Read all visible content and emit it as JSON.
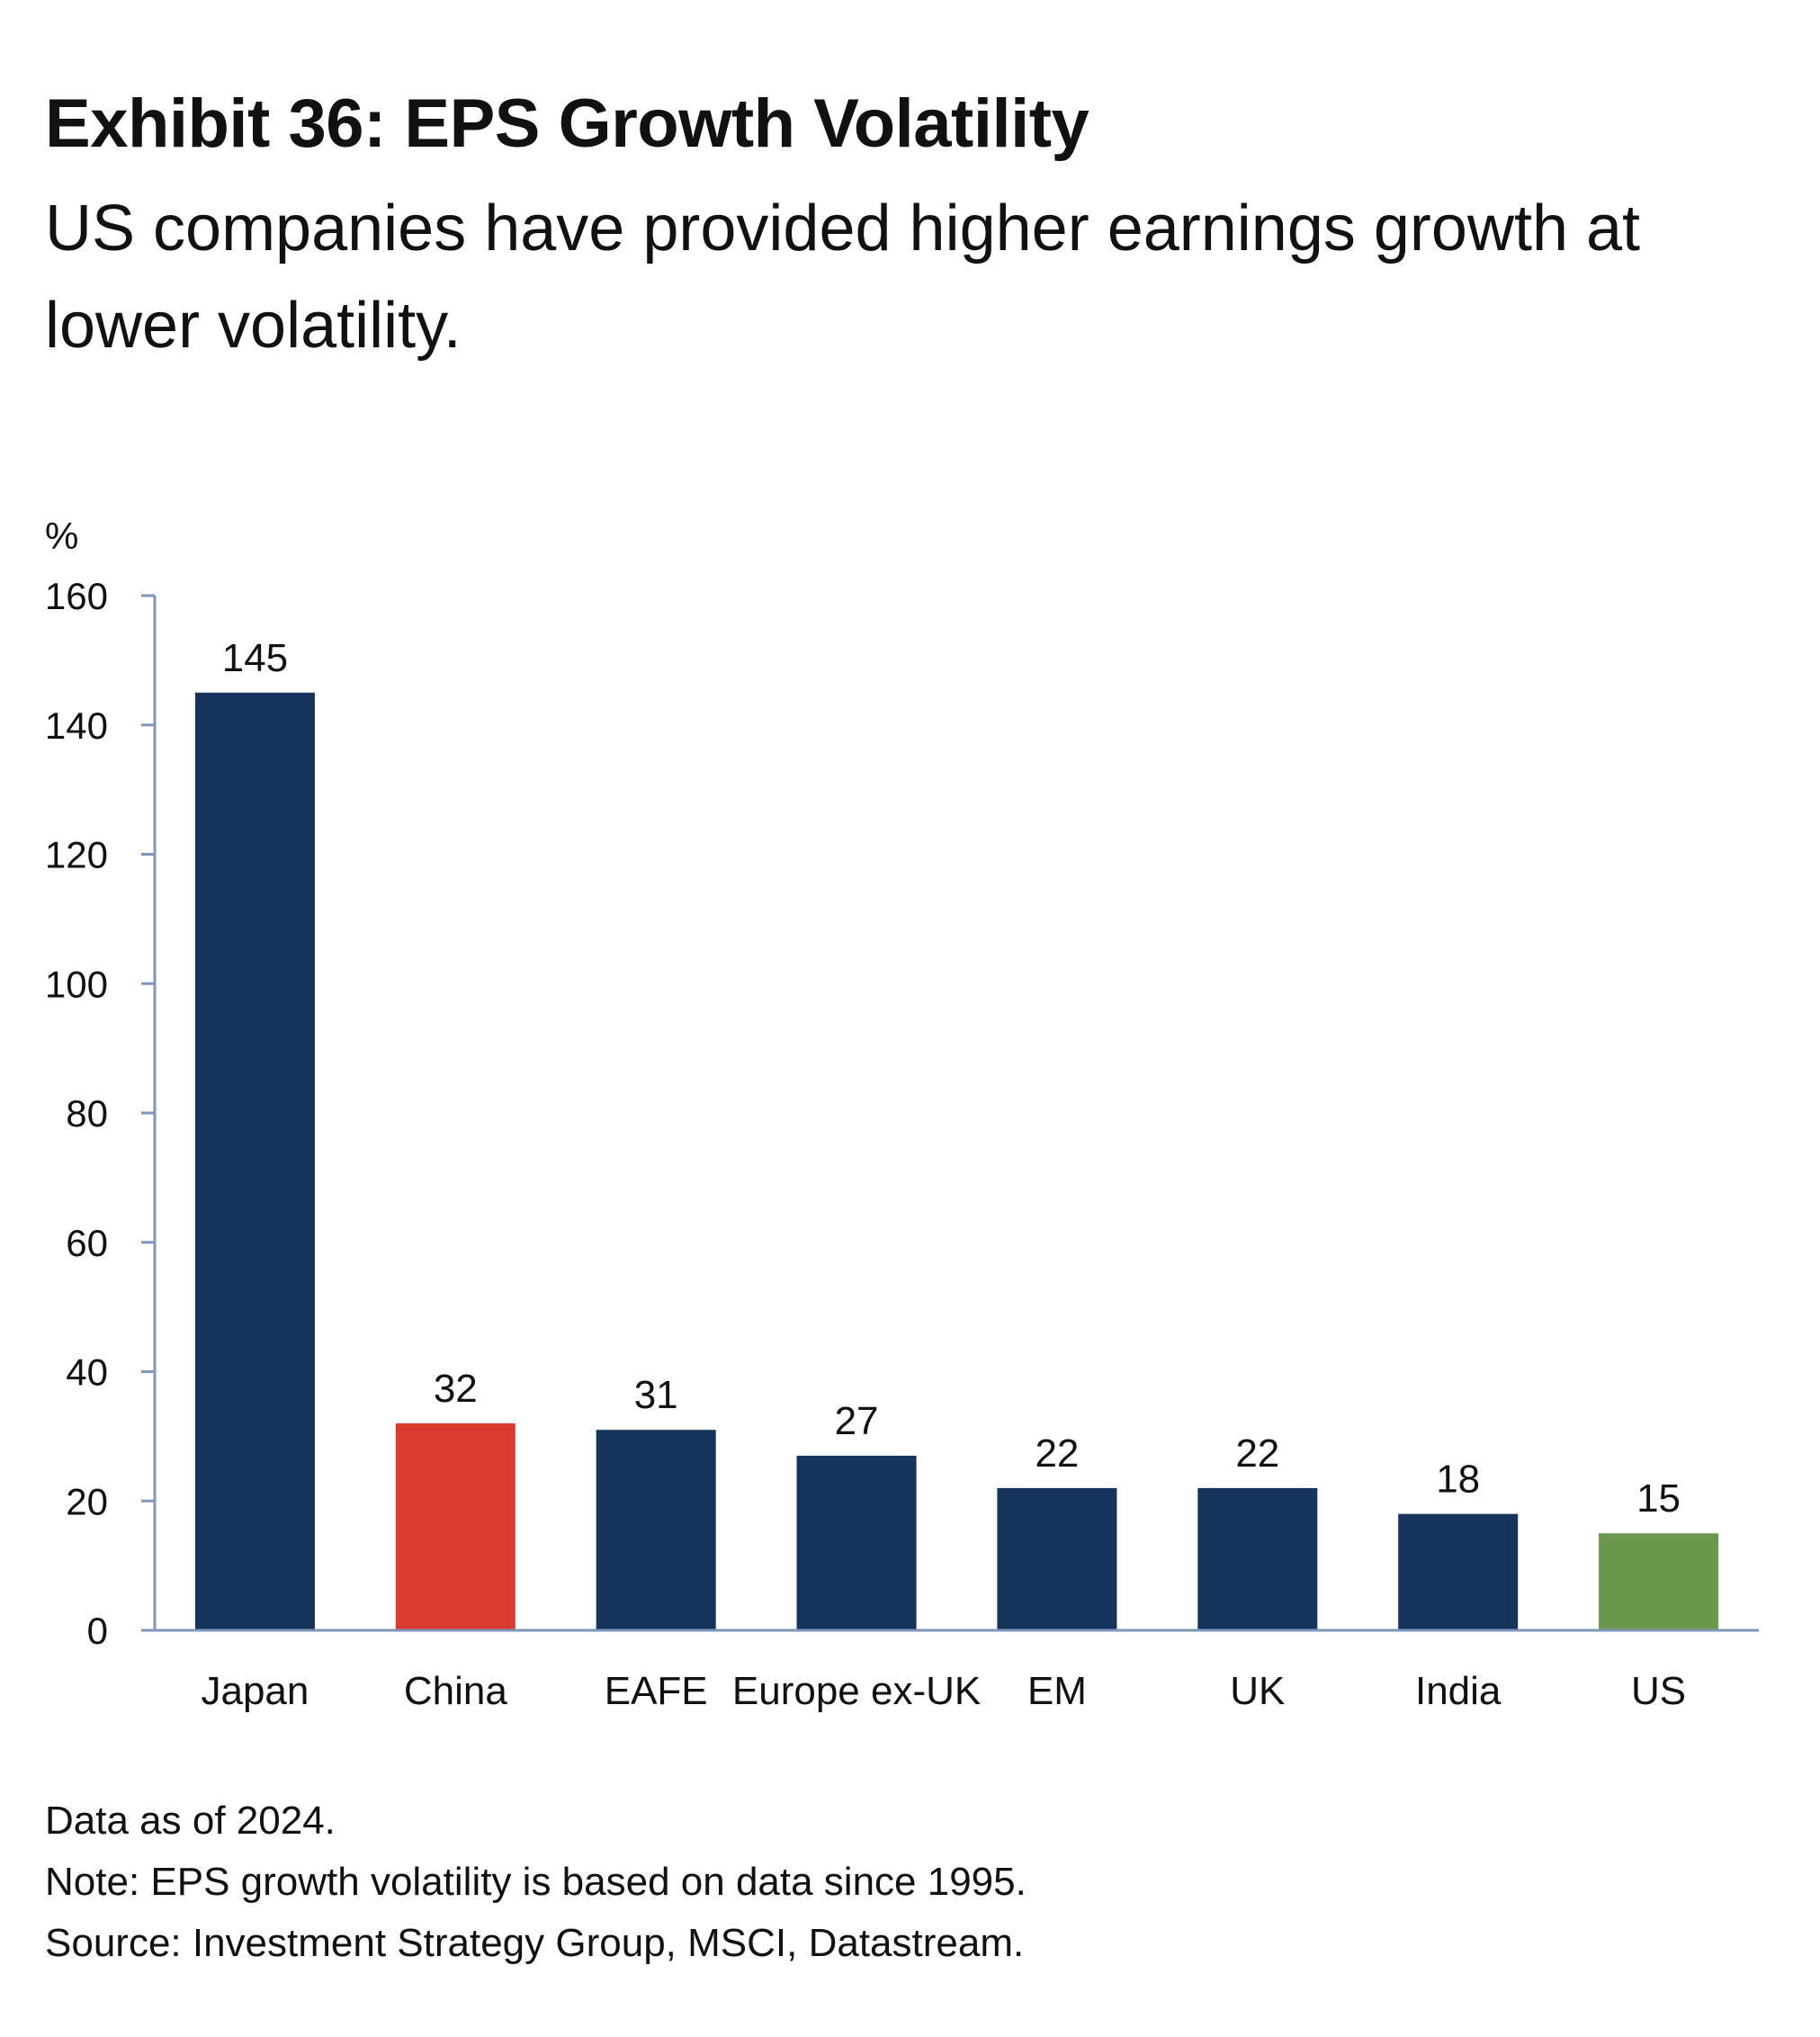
{
  "header": {
    "title": "Exhibit 36: EPS Growth Volatility",
    "subtitle": "US companies have provided higher earnings growth at lower volatility."
  },
  "chart_data": {
    "type": "bar",
    "title": "Exhibit 36: EPS Growth Volatility",
    "ylabel": "%",
    "xlabel": "",
    "ylim": [
      0,
      160
    ],
    "yticks": [
      0,
      20,
      40,
      60,
      80,
      100,
      120,
      140,
      160
    ],
    "grid": false,
    "categories": [
      "Japan",
      "China",
      "EAFE",
      "Europe ex-UK",
      "EM",
      "UK",
      "India",
      "US"
    ],
    "values": [
      145,
      32,
      31,
      27,
      22,
      22,
      18,
      15
    ],
    "colors": [
      "#15335b",
      "#d93b32",
      "#15335b",
      "#15335b",
      "#15335b",
      "#15335b",
      "#15335b",
      "#6b984c"
    ],
    "axis_color": "#7f97bb"
  },
  "notes": {
    "data_as_of": "Data as of 2024.",
    "note": "Note: EPS growth volatility is based on data since 1995.",
    "source": "Source: Investment Strategy Group, MSCI, Datastream."
  }
}
